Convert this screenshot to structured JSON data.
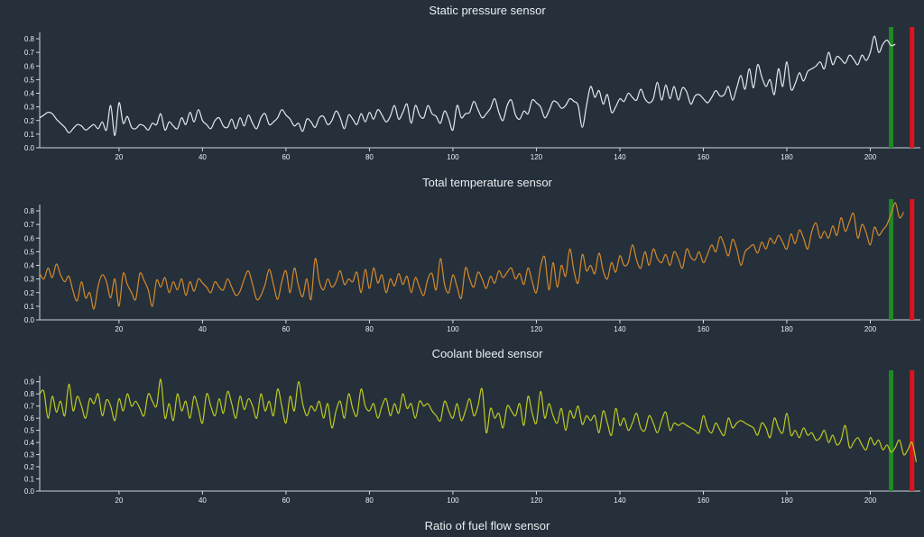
{
  "dashboard": {
    "next_title": "Ratio of fuel flow sensor"
  },
  "chart_data": [
    {
      "type": "line",
      "title": "Static pressure sensor",
      "color": "#e6e9ec",
      "xlim": [
        1,
        212
      ],
      "ylim": [
        0,
        0.82
      ],
      "xticks": [
        20,
        40,
        60,
        80,
        100,
        120,
        140,
        160,
        180,
        200
      ],
      "yticks": [
        0.0,
        0.1,
        0.2,
        0.3,
        0.4,
        0.5,
        0.6,
        0.7,
        0.8
      ],
      "markers": [
        {
          "x": 205,
          "color": "#1e8a25"
        },
        {
          "x": 210,
          "color": "#e0121b"
        }
      ],
      "series": [
        {
          "x_start": 1,
          "values": [
            0.22,
            0.24,
            0.26,
            0.25,
            0.21,
            0.18,
            0.15,
            0.11,
            0.14,
            0.17,
            0.16,
            0.13,
            0.15,
            0.17,
            0.14,
            0.19,
            0.13,
            0.31,
            0.09,
            0.33,
            0.18,
            0.23,
            0.15,
            0.14,
            0.17,
            0.16,
            0.13,
            0.18,
            0.17,
            0.25,
            0.13,
            0.19,
            0.16,
            0.14,
            0.22,
            0.17,
            0.26,
            0.19,
            0.28,
            0.2,
            0.17,
            0.14,
            0.2,
            0.22,
            0.16,
            0.15,
            0.21,
            0.14,
            0.22,
            0.16,
            0.24,
            0.18,
            0.14,
            0.22,
            0.25,
            0.17,
            0.19,
            0.22,
            0.28,
            0.24,
            0.21,
            0.16,
            0.18,
            0.12,
            0.21,
            0.19,
            0.15,
            0.22,
            0.23,
            0.17,
            0.2,
            0.27,
            0.22,
            0.14,
            0.24,
            0.21,
            0.17,
            0.25,
            0.19,
            0.26,
            0.21,
            0.28,
            0.24,
            0.19,
            0.23,
            0.31,
            0.21,
            0.26,
            0.32,
            0.18,
            0.31,
            0.24,
            0.22,
            0.31,
            0.25,
            0.23,
            0.18,
            0.27,
            0.21,
            0.13,
            0.31,
            0.22,
            0.25,
            0.26,
            0.34,
            0.28,
            0.22,
            0.25,
            0.29,
            0.36,
            0.26,
            0.2,
            0.31,
            0.35,
            0.24,
            0.21,
            0.27,
            0.25,
            0.35,
            0.33,
            0.3,
            0.22,
            0.27,
            0.34,
            0.33,
            0.29,
            0.31,
            0.36,
            0.34,
            0.31,
            0.15,
            0.31,
            0.45,
            0.37,
            0.42,
            0.32,
            0.39,
            0.26,
            0.3,
            0.36,
            0.34,
            0.4,
            0.37,
            0.35,
            0.43,
            0.36,
            0.33,
            0.36,
            0.48,
            0.35,
            0.46,
            0.36,
            0.45,
            0.35,
            0.44,
            0.41,
            0.32,
            0.38,
            0.39,
            0.36,
            0.33,
            0.37,
            0.42,
            0.38,
            0.39,
            0.45,
            0.35,
            0.44,
            0.53,
            0.43,
            0.58,
            0.44,
            0.61,
            0.52,
            0.45,
            0.5,
            0.39,
            0.58,
            0.45,
            0.63,
            0.43,
            0.47,
            0.55,
            0.49,
            0.56,
            0.58,
            0.6,
            0.63,
            0.58,
            0.7,
            0.61,
            0.67,
            0.65,
            0.62,
            0.68,
            0.65,
            0.61,
            0.68,
            0.64,
            0.7,
            0.82,
            0.7,
            0.76,
            0.79,
            0.75,
            0.76
          ]
        }
      ]
    },
    {
      "type": "line",
      "title": "Total temperature sensor",
      "color": "#d68a2a",
      "xlim": [
        1,
        212
      ],
      "ylim": [
        0,
        0.82
      ],
      "xticks": [
        20,
        40,
        60,
        80,
        100,
        120,
        140,
        160,
        180,
        200
      ],
      "yticks": [
        0.0,
        0.1,
        0.2,
        0.3,
        0.4,
        0.5,
        0.6,
        0.7,
        0.8
      ],
      "markers": [
        {
          "x": 205,
          "color": "#1e8a25"
        },
        {
          "x": 210,
          "color": "#e0121b"
        }
      ],
      "series": [
        {
          "x_start": 1,
          "values": [
            0.34,
            0.3,
            0.38,
            0.31,
            0.41,
            0.33,
            0.28,
            0.32,
            0.21,
            0.14,
            0.28,
            0.16,
            0.2,
            0.08,
            0.25,
            0.33,
            0.28,
            0.16,
            0.3,
            0.1,
            0.34,
            0.26,
            0.2,
            0.15,
            0.34,
            0.29,
            0.22,
            0.1,
            0.29,
            0.24,
            0.31,
            0.2,
            0.28,
            0.22,
            0.3,
            0.18,
            0.28,
            0.21,
            0.3,
            0.27,
            0.24,
            0.2,
            0.28,
            0.24,
            0.22,
            0.3,
            0.24,
            0.18,
            0.21,
            0.3,
            0.36,
            0.26,
            0.15,
            0.18,
            0.26,
            0.37,
            0.26,
            0.15,
            0.28,
            0.36,
            0.2,
            0.38,
            0.25,
            0.17,
            0.3,
            0.15,
            0.45,
            0.28,
            0.22,
            0.3,
            0.24,
            0.28,
            0.36,
            0.26,
            0.3,
            0.28,
            0.35,
            0.2,
            0.37,
            0.23,
            0.38,
            0.27,
            0.33,
            0.2,
            0.3,
            0.25,
            0.34,
            0.26,
            0.32,
            0.2,
            0.31,
            0.24,
            0.18,
            0.3,
            0.34,
            0.22,
            0.45,
            0.26,
            0.2,
            0.33,
            0.24,
            0.16,
            0.38,
            0.3,
            0.24,
            0.35,
            0.3,
            0.23,
            0.32,
            0.27,
            0.36,
            0.31,
            0.35,
            0.38,
            0.3,
            0.34,
            0.26,
            0.38,
            0.28,
            0.2,
            0.39,
            0.46,
            0.22,
            0.42,
            0.24,
            0.4,
            0.32,
            0.52,
            0.36,
            0.27,
            0.48,
            0.36,
            0.4,
            0.34,
            0.49,
            0.36,
            0.3,
            0.42,
            0.35,
            0.47,
            0.4,
            0.42,
            0.55,
            0.44,
            0.38,
            0.5,
            0.4,
            0.52,
            0.45,
            0.42,
            0.48,
            0.4,
            0.5,
            0.45,
            0.38,
            0.52,
            0.46,
            0.44,
            0.5,
            0.42,
            0.48,
            0.55,
            0.5,
            0.61,
            0.55,
            0.47,
            0.59,
            0.52,
            0.4,
            0.5,
            0.53,
            0.55,
            0.49,
            0.57,
            0.52,
            0.6,
            0.56,
            0.62,
            0.57,
            0.52,
            0.63,
            0.56,
            0.66,
            0.6,
            0.52,
            0.65,
            0.71,
            0.6,
            0.65,
            0.6,
            0.69,
            0.62,
            0.75,
            0.65,
            0.72,
            0.78,
            0.6,
            0.7,
            0.64,
            0.55,
            0.68,
            0.62,
            0.66,
            0.7,
            0.78,
            0.86,
            0.75,
            0.79
          ]
        }
      ]
    },
    {
      "type": "line",
      "title": "Coolant bleed sensor",
      "color": "#bfcb1f",
      "xlim": [
        1,
        212
      ],
      "ylim": [
        0,
        0.92
      ],
      "xticks": [
        20,
        40,
        60,
        80,
        100,
        120,
        140,
        160,
        180,
        200
      ],
      "yticks": [
        0.0,
        0.1,
        0.2,
        0.3,
        0.4,
        0.5,
        0.6,
        0.7,
        0.8,
        0.9
      ],
      "markers": [
        {
          "x": 205,
          "color": "#1e8a25"
        },
        {
          "x": 210,
          "color": "#e0121b"
        }
      ],
      "series": [
        {
          "x_start": 1,
          "values": [
            0.8,
            0.82,
            0.6,
            0.78,
            0.65,
            0.74,
            0.62,
            0.88,
            0.66,
            0.78,
            0.7,
            0.6,
            0.76,
            0.72,
            0.8,
            0.62,
            0.75,
            0.7,
            0.58,
            0.76,
            0.66,
            0.8,
            0.7,
            0.74,
            0.68,
            0.62,
            0.8,
            0.74,
            0.7,
            0.92,
            0.6,
            0.72,
            0.58,
            0.8,
            0.66,
            0.74,
            0.6,
            0.78,
            0.68,
            0.56,
            0.8,
            0.7,
            0.62,
            0.76,
            0.64,
            0.82,
            0.72,
            0.6,
            0.78,
            0.67,
            0.76,
            0.7,
            0.6,
            0.8,
            0.66,
            0.74,
            0.62,
            0.84,
            0.7,
            0.56,
            0.78,
            0.66,
            0.9,
            0.72,
            0.62,
            0.7,
            0.66,
            0.74,
            0.6,
            0.72,
            0.52,
            0.66,
            0.74,
            0.6,
            0.8,
            0.68,
            0.62,
            0.84,
            0.7,
            0.66,
            0.72,
            0.6,
            0.7,
            0.76,
            0.62,
            0.72,
            0.64,
            0.8,
            0.68,
            0.72,
            0.6,
            0.74,
            0.7,
            0.72,
            0.66,
            0.62,
            0.58,
            0.74,
            0.66,
            0.6,
            0.72,
            0.58,
            0.66,
            0.76,
            0.62,
            0.7,
            0.84,
            0.48,
            0.68,
            0.6,
            0.64,
            0.52,
            0.7,
            0.66,
            0.62,
            0.72,
            0.54,
            0.78,
            0.64,
            0.56,
            0.82,
            0.6,
            0.72,
            0.62,
            0.56,
            0.68,
            0.5,
            0.66,
            0.6,
            0.7,
            0.55,
            0.62,
            0.58,
            0.62,
            0.48,
            0.66,
            0.56,
            0.46,
            0.68,
            0.54,
            0.6,
            0.5,
            0.56,
            0.64,
            0.52,
            0.5,
            0.62,
            0.56,
            0.48,
            0.58,
            0.65,
            0.5,
            0.56,
            0.54,
            0.56,
            0.54,
            0.52,
            0.5,
            0.48,
            0.62,
            0.52,
            0.48,
            0.56,
            0.5,
            0.46,
            0.6,
            0.52,
            0.56,
            0.58,
            0.56,
            0.54,
            0.52,
            0.46,
            0.56,
            0.52,
            0.44,
            0.6,
            0.52,
            0.48,
            0.64,
            0.46,
            0.5,
            0.44,
            0.52,
            0.46,
            0.48,
            0.42,
            0.44,
            0.5,
            0.4,
            0.46,
            0.38,
            0.42,
            0.54,
            0.36,
            0.4,
            0.44,
            0.38,
            0.34,
            0.44,
            0.38,
            0.42,
            0.34,
            0.38,
            0.32,
            0.36,
            0.42,
            0.3,
            0.34,
            0.4,
            0.24
          ]
        }
      ]
    }
  ]
}
